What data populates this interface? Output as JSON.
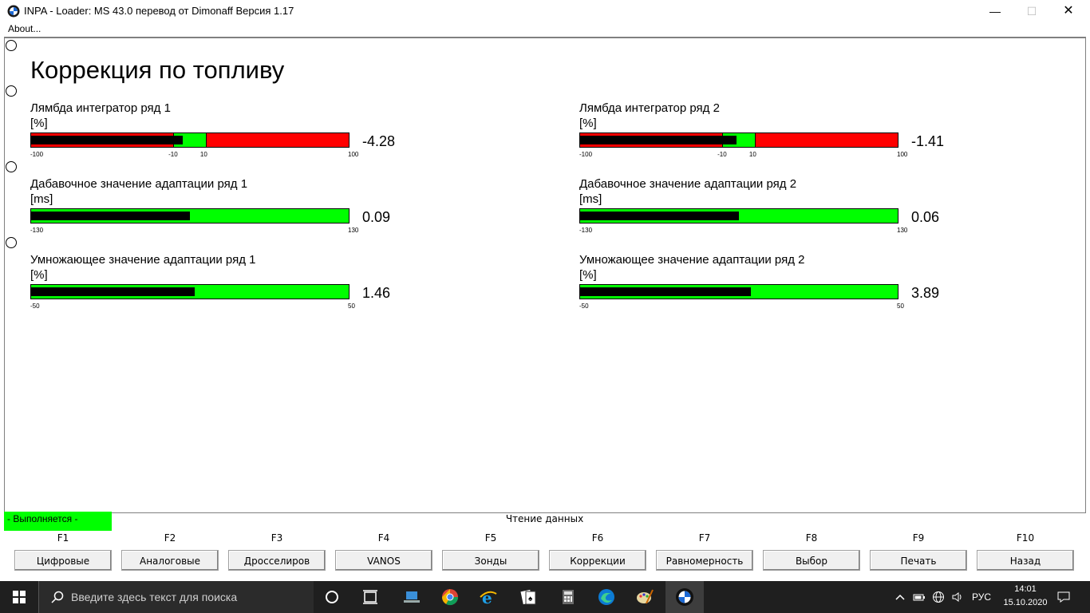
{
  "window": {
    "title": "INPA - Loader:  MS 43.0 перевод от Dimonaff Версия 1.17",
    "minimize": "—",
    "maximize": "☐",
    "close": "✕"
  },
  "menu": {
    "about": "About..."
  },
  "page": {
    "title": "Коррекция по топливу"
  },
  "gauges": [
    {
      "label": "Лямбда интегратор ряд 1",
      "unit": "[%]",
      "value": "-4.28",
      "min": -100,
      "max": 100,
      "band": [
        -10,
        10
      ],
      "current": -4.28,
      "ticks": [
        "-100",
        "-10",
        "10",
        "100"
      ],
      "band_color": "#00ff00",
      "out_color": "#ff0000"
    },
    {
      "label": "Лямбда интегратор ряд 2",
      "unit": "[%]",
      "value": "-1.41",
      "min": -100,
      "max": 100,
      "band": [
        -10,
        10
      ],
      "current": -1.41,
      "ticks": [
        "-100",
        "-10",
        "10",
        "100"
      ],
      "band_color": "#00ff00",
      "out_color": "#ff0000"
    },
    {
      "label": "Дабавочное значение адаптации ряд 1",
      "unit": "[ms]",
      "value": "0.09",
      "min": -130,
      "max": 130,
      "current": 0.09,
      "ticks": [
        "-130",
        "130"
      ],
      "band_color": "#00ff00"
    },
    {
      "label": "Дабавочное значение адаптации ряд 2",
      "unit": "[ms]",
      "value": "0.06",
      "min": -130,
      "max": 130,
      "current": 0.06,
      "ticks": [
        "-130",
        "130"
      ],
      "band_color": "#00ff00"
    },
    {
      "label": "Умножающее значение адаптации ряд 1",
      "unit": "[%]",
      "value": "1.46",
      "min": -50,
      "max": 50,
      "current": 1.46,
      "ticks": [
        "-50",
        "50"
      ],
      "band_color": "#00ff00"
    },
    {
      "label": "Умножающее значение адаптации ряд 2",
      "unit": "[%]",
      "value": "3.89",
      "min": -50,
      "max": 50,
      "current": 3.89,
      "ticks": [
        "-50",
        "50"
      ],
      "band_color": "#00ff00"
    }
  ],
  "status": {
    "running": "- Выполняется -",
    "reading": "Чтение данных",
    "running_color": "#00ff00"
  },
  "function_keys": [
    {
      "key": "F1",
      "label": "Цифровые"
    },
    {
      "key": "F2",
      "label": "Аналоговые"
    },
    {
      "key": "F3",
      "label": "Дросселиров"
    },
    {
      "key": "F4",
      "label": "VANOS"
    },
    {
      "key": "F5",
      "label": "Зонды"
    },
    {
      "key": "F6",
      "label": "Коррекции"
    },
    {
      "key": "F7",
      "label": "Равномерность"
    },
    {
      "key": "F8",
      "label": "Выбор"
    },
    {
      "key": "F9",
      "label": "Печать"
    },
    {
      "key": "F10",
      "label": "Назад"
    }
  ],
  "taskbar": {
    "search_placeholder": "Введите здесь текст для поиска",
    "apps": [
      "cortana-icon",
      "task-view-icon",
      "laptop-icon",
      "chrome-icon",
      "internet-explorer-icon",
      "solitaire-icon",
      "calculator-icon",
      "edge-icon",
      "paint-icon",
      "bmw-inpa-icon"
    ],
    "language": "РУС",
    "time": "14:01",
    "date": "15.10.2020"
  }
}
